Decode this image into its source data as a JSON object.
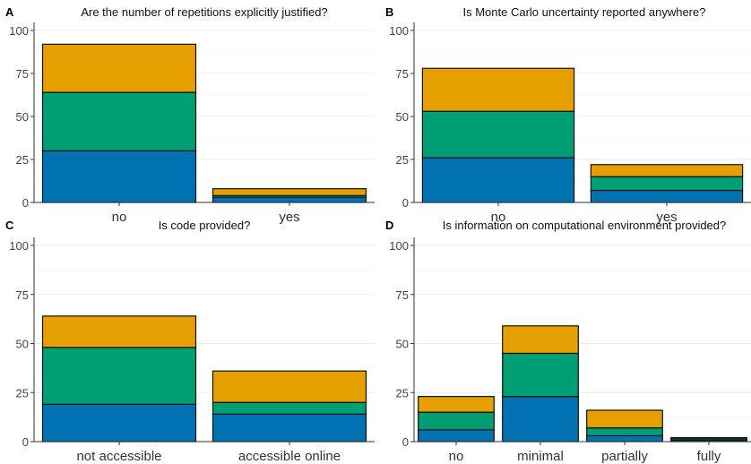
{
  "chart_data": [
    {
      "type": "bar",
      "stacked": true,
      "panel_label": "A",
      "title": "Are the number of repetitions explicitly justified?",
      "categories": [
        "no",
        "yes"
      ],
      "series": [
        {
          "values": [
            30,
            3
          ],
          "color": "#0072B2"
        },
        {
          "values": [
            34,
            1
          ],
          "color": "#009E73"
        },
        {
          "values": [
            28,
            4
          ],
          "color": "#E69F00"
        }
      ],
      "ylim": [
        0,
        100
      ],
      "yticks": [
        0,
        25,
        50,
        75,
        100
      ],
      "grid": true
    },
    {
      "type": "bar",
      "stacked": true,
      "panel_label": "B",
      "title": "Is Monte Carlo uncertainty reported anywhere?",
      "categories": [
        "no",
        "yes"
      ],
      "series": [
        {
          "values": [
            26,
            7
          ],
          "color": "#0072B2"
        },
        {
          "values": [
            27,
            8
          ],
          "color": "#009E73"
        },
        {
          "values": [
            25,
            7
          ],
          "color": "#E69F00"
        }
      ],
      "ylim": [
        0,
        100
      ],
      "yticks": [
        0,
        25,
        50,
        75,
        100
      ],
      "grid": true
    },
    {
      "type": "bar",
      "stacked": true,
      "panel_label": "C",
      "title": "Is code provided?",
      "categories": [
        "not accessible",
        "accessible online"
      ],
      "series": [
        {
          "values": [
            19,
            14
          ],
          "color": "#0072B2"
        },
        {
          "values": [
            29,
            6
          ],
          "color": "#009E73"
        },
        {
          "values": [
            16,
            16
          ],
          "color": "#E69F00"
        }
      ],
      "ylim": [
        0,
        100
      ],
      "yticks": [
        0,
        25,
        50,
        75,
        100
      ],
      "grid": true
    },
    {
      "type": "bar",
      "stacked": true,
      "panel_label": "D",
      "title": "Is information on computational environment provided?",
      "categories": [
        "no",
        "minimal",
        "partially",
        "fully"
      ],
      "series": [
        {
          "values": [
            6,
            23,
            3,
            0.7
          ],
          "color": "#0072B2"
        },
        {
          "values": [
            9,
            22,
            4,
            0.7
          ],
          "color": "#009E73"
        },
        {
          "values": [
            8,
            14,
            9,
            0.6
          ],
          "color": "#E69F00"
        }
      ],
      "ylim": [
        0,
        100
      ],
      "yticks": [
        0,
        25,
        50,
        75,
        100
      ],
      "grid": true
    }
  ]
}
